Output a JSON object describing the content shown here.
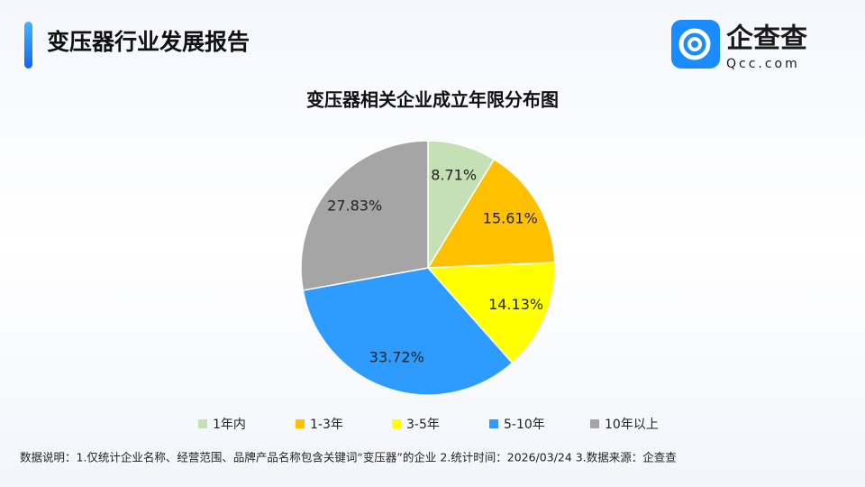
{
  "header": {
    "title": "变压器行业发展报告",
    "logo_name": "企查查",
    "logo_domain": "Qcc.com"
  },
  "chart_data": {
    "type": "pie",
    "title": "变压器相关企业成立年限分布图",
    "categories": [
      "1年内",
      "1-3年",
      "3-5年",
      "5-10年",
      "10年以上"
    ],
    "values": [
      8.71,
      15.61,
      14.13,
      33.72,
      27.83
    ],
    "value_labels": [
      "8.71%",
      "15.61%",
      "14.13%",
      "33.72%",
      "27.83%"
    ],
    "colors": [
      "#c5e0b4",
      "#ffc000",
      "#ffff00",
      "#2e9bff",
      "#a5a5a5"
    ],
    "legend": "bottom"
  },
  "footer": {
    "note": "数据说明：1.仅统计企业名称、经营范围、品牌产品名称包含关键词“变压器”的企业   2.统计时间：2026/03/24    3.数据来源：企查查"
  }
}
